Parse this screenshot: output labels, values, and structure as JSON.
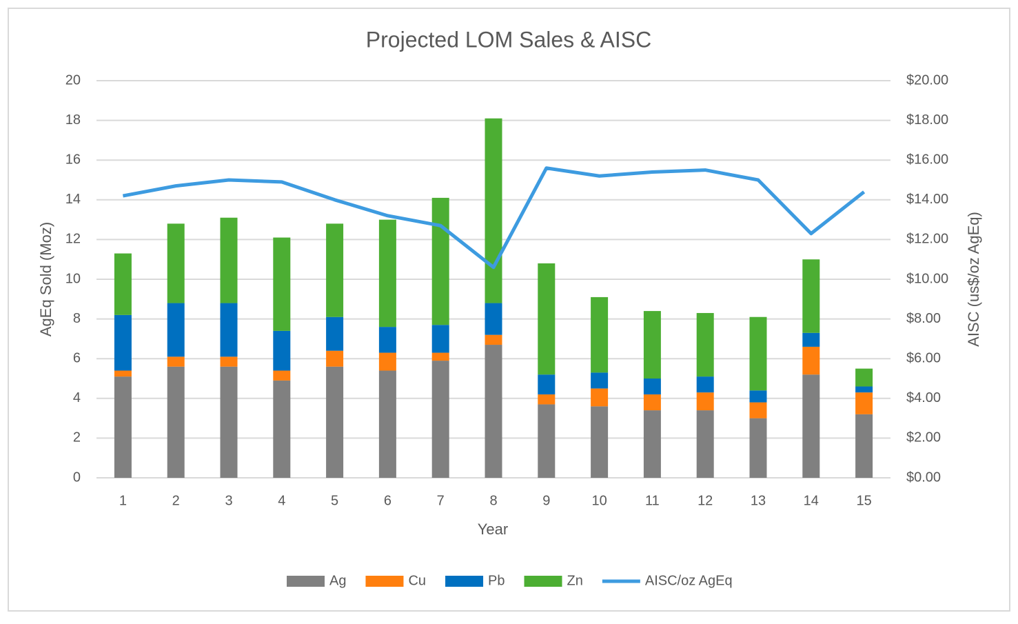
{
  "chart_data": {
    "type": "bar",
    "stacked": true,
    "title": "Projected LOM Sales & AISC",
    "x_label": "Year",
    "y_label": "AgEq Sold (Moz)",
    "y2_label": "AISC (us$/oz AgEq)",
    "categories": [
      "1",
      "2",
      "3",
      "4",
      "5",
      "6",
      "7",
      "8",
      "9",
      "10",
      "11",
      "12",
      "13",
      "14",
      "15"
    ],
    "series": [
      {
        "name": "Ag",
        "color": "#808080",
        "values": [
          5.1,
          5.6,
          5.6,
          4.9,
          5.6,
          5.4,
          5.9,
          6.7,
          3.7,
          3.6,
          3.4,
          3.4,
          3.0,
          5.2,
          3.2
        ]
      },
      {
        "name": "Cu",
        "color": "#ff7f0e",
        "values": [
          0.3,
          0.5,
          0.5,
          0.5,
          0.8,
          0.9,
          0.4,
          0.5,
          0.5,
          0.9,
          0.8,
          0.9,
          0.8,
          1.4,
          1.1
        ]
      },
      {
        "name": "Pb",
        "color": "#0070c0",
        "values": [
          2.8,
          2.7,
          2.7,
          2.0,
          1.7,
          1.3,
          1.4,
          1.6,
          1.0,
          0.8,
          0.8,
          0.8,
          0.6,
          0.7,
          0.3
        ]
      },
      {
        "name": "Zn",
        "color": "#4cae33",
        "values": [
          3.1,
          4.0,
          4.3,
          4.7,
          4.7,
          5.4,
          6.4,
          9.3,
          5.6,
          3.8,
          3.4,
          3.2,
          3.7,
          3.7,
          0.9
        ]
      },
      {
        "name": "AISC/oz AgEq",
        "color": "#3d9be0",
        "type": "line",
        "axis": "y2",
        "values": [
          14.2,
          14.7,
          15.0,
          14.9,
          14.0,
          13.2,
          12.7,
          10.6,
          15.6,
          15.2,
          15.4,
          15.5,
          15.0,
          12.3,
          14.4
        ]
      }
    ],
    "ylim": [
      0,
      20
    ],
    "yticks": [
      0,
      2,
      4,
      6,
      8,
      10,
      12,
      14,
      16,
      18,
      20
    ],
    "y2lim": [
      0,
      20
    ],
    "y2ticks": [
      {
        "value": 0,
        "label": "$0.00"
      },
      {
        "value": 2,
        "label": "$2.00"
      },
      {
        "value": 4,
        "label": "$4.00"
      },
      {
        "value": 6,
        "label": "$6.00"
      },
      {
        "value": 8,
        "label": "$8.00"
      },
      {
        "value": 10,
        "label": "$10.00"
      },
      {
        "value": 12,
        "label": "$12.00"
      },
      {
        "value": 14,
        "label": "$14.00"
      },
      {
        "value": 16,
        "label": "$16.00"
      },
      {
        "value": 18,
        "label": "$18.00"
      },
      {
        "value": 20,
        "label": "$20.00"
      }
    ],
    "grid": true,
    "legend": "bottom"
  }
}
